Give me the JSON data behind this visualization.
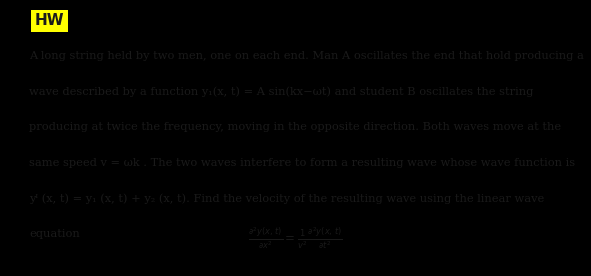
{
  "title": "HW",
  "title_bg": "#FFFF00",
  "title_fontsize": 11,
  "body_fontsize": 8.2,
  "math_fontsize": 8.5,
  "bg_color": "#FFFFFF",
  "text_color": "#1a1a1a",
  "margin_bg": "#000000",
  "line1": "A long string held by two men, one on each end. Man A oscillates the end that hold producing a",
  "line2": "wave described by a function y₁(x, t) = A sin(kx−ωt) and student B oscillates the string",
  "line3": "producing at twice the frequency, moving in the opposite direction. Both waves move at the",
  "line4": "same speed v = ωk . The two waves interfere to form a resulting wave whose wave function is",
  "line5": "yᴵ (x, t) = y₁ (x, t) + y₂ (x, t). Find the velocity of the resulting wave using the linear wave",
  "line6": "equation",
  "eq": "$\\frac{\\partial^2 y(x,\\, t)}{\\partial x^2} = \\frac{1}{v^2}\\frac{\\partial^2 y(x,\\, t)}{\\partial t^2}$",
  "figwidth": 5.91,
  "figheight": 2.76,
  "dpi": 100
}
